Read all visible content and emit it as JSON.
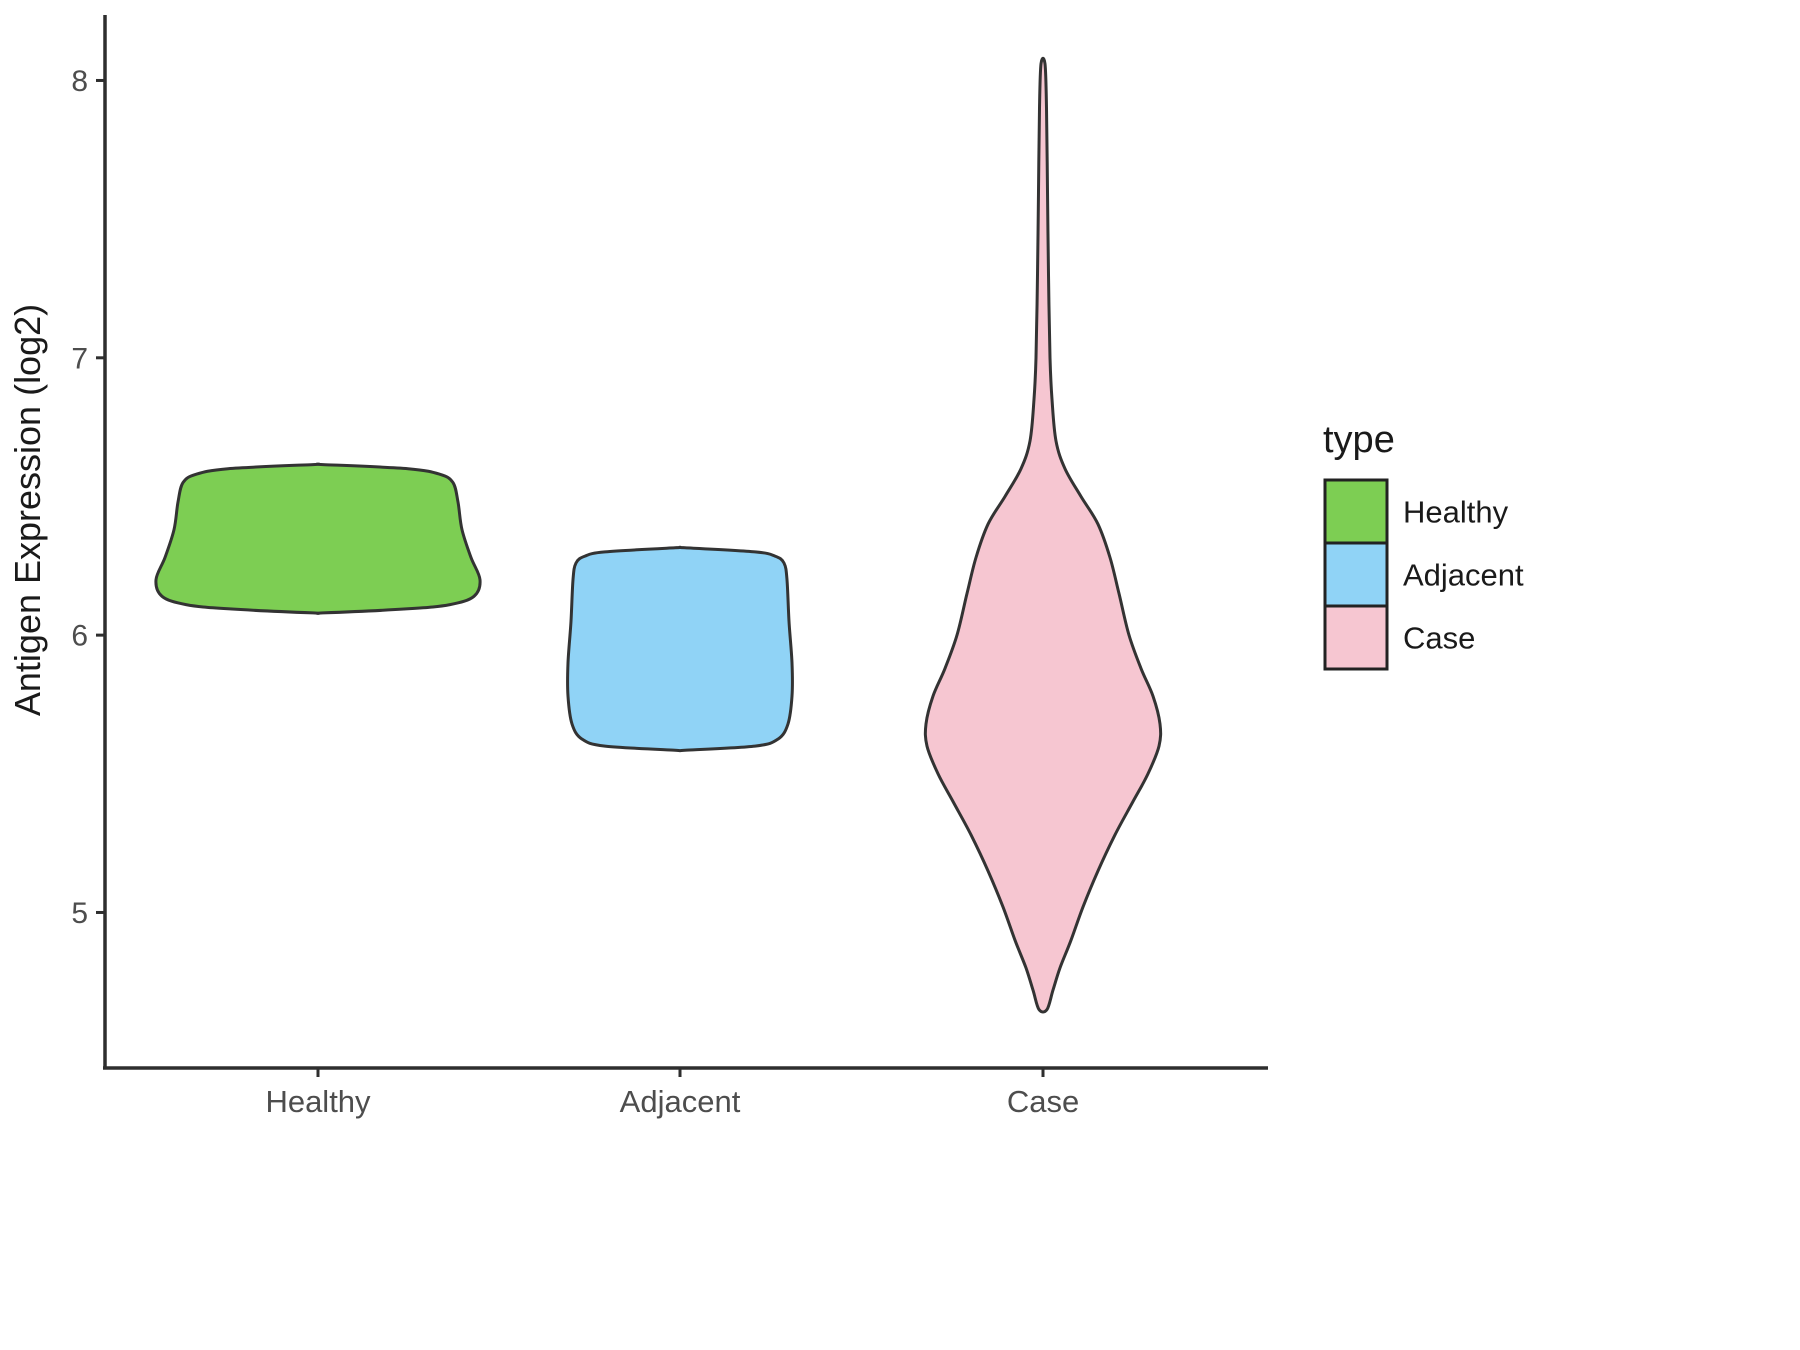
{
  "chart_data": {
    "type": "violin",
    "title": "",
    "xlabel": "",
    "ylabel": "Antigen Expression (log2)",
    "categories": [
      "Healthy",
      "Adjacent",
      "Case"
    ],
    "yticks": [
      5,
      6,
      7,
      8
    ],
    "ylim": [
      4.45,
      8.2
    ],
    "grid": false,
    "background": "#ffffff",
    "axis_color": "#2e2e2e",
    "tick_label_color": "#4d4d4d",
    "text_color": "#1a1a1a",
    "legend": {
      "title": "type",
      "position": "right",
      "entries": [
        {
          "label": "Healthy",
          "color": "#7DCE53"
        },
        {
          "label": "Adjacent",
          "color": "#90D3F6"
        },
        {
          "label": "Case",
          "color": "#F6C6D1"
        }
      ]
    },
    "series": [
      {
        "name": "Healthy",
        "fill": "#7DCE53",
        "outline": "#333333",
        "value_range": [
          6.08,
          6.62
        ],
        "profile": [
          [
            6.615,
            5
          ],
          [
            6.6,
            90
          ],
          [
            6.58,
            122
          ],
          [
            6.55,
            135
          ],
          [
            6.48,
            140
          ],
          [
            6.38,
            144
          ],
          [
            6.28,
            153
          ],
          [
            6.2,
            162
          ],
          [
            6.14,
            156
          ],
          [
            6.11,
            132
          ],
          [
            6.095,
            90
          ],
          [
            6.08,
            5
          ]
        ]
      },
      {
        "name": "Adjacent",
        "fill": "#90D3F6",
        "outline": "#333333",
        "value_range": [
          5.58,
          6.32
        ],
        "profile": [
          [
            6.315,
            5
          ],
          [
            6.3,
            75
          ],
          [
            6.285,
            95
          ],
          [
            6.26,
            104
          ],
          [
            6.2,
            107
          ],
          [
            6.05,
            109
          ],
          [
            5.9,
            112
          ],
          [
            5.78,
            112
          ],
          [
            5.68,
            108
          ],
          [
            5.625,
            98
          ],
          [
            5.6,
            75
          ],
          [
            5.585,
            5
          ]
        ]
      },
      {
        "name": "Case",
        "fill": "#F6C6D1",
        "outline": "#333333",
        "value_range": [
          4.62,
          8.06
        ],
        "profile": [
          [
            8.06,
            2
          ],
          [
            7.9,
            3.5
          ],
          [
            7.6,
            4.5
          ],
          [
            7.3,
            5.5
          ],
          [
            7.0,
            7
          ],
          [
            6.85,
            9
          ],
          [
            6.7,
            13
          ],
          [
            6.6,
            22
          ],
          [
            6.5,
            38
          ],
          [
            6.4,
            55
          ],
          [
            6.28,
            67
          ],
          [
            6.15,
            76
          ],
          [
            6.0,
            86
          ],
          [
            5.88,
            98
          ],
          [
            5.78,
            110
          ],
          [
            5.68,
            117
          ],
          [
            5.6,
            116
          ],
          [
            5.5,
            105
          ],
          [
            5.4,
            90
          ],
          [
            5.28,
            72
          ],
          [
            5.15,
            55
          ],
          [
            5.02,
            40
          ],
          [
            4.9,
            28
          ],
          [
            4.8,
            17
          ],
          [
            4.72,
            10
          ],
          [
            4.65,
            4
          ]
        ]
      }
    ]
  }
}
